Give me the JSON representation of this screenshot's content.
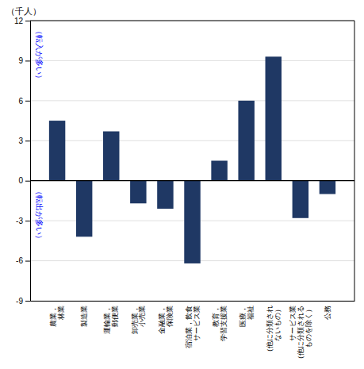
{
  "chart_data": {
    "type": "bar",
    "categories": [
      "農業，\n林業",
      "製造業",
      "運輸業，\n郵便業",
      "卸売業，\n小売業",
      "金融業，\n保険業",
      "宿泊業，飲食\nサービス業",
      "教育，\n学習支援業",
      "医療，\n福祉",
      "（他に分類され\nないもの）",
      "サービス業\n（他に分類される\nものを除く）",
      "公務"
    ],
    "values": [
      4.5,
      -4.2,
      3.7,
      -1.7,
      -2.1,
      -6.2,
      1.5,
      6.0,
      9.3,
      -2.8,
      -1.0
    ],
    "color": "#1f3864",
    "ylim": [
      -9,
      12
    ],
    "yticks": [
      -9,
      -6,
      -3,
      0,
      3,
      6,
      9,
      12
    ],
    "grid": true,
    "ylabel": "（千人）",
    "annotations": [
      "（転入が多い）",
      "（転出が多い）"
    ]
  }
}
